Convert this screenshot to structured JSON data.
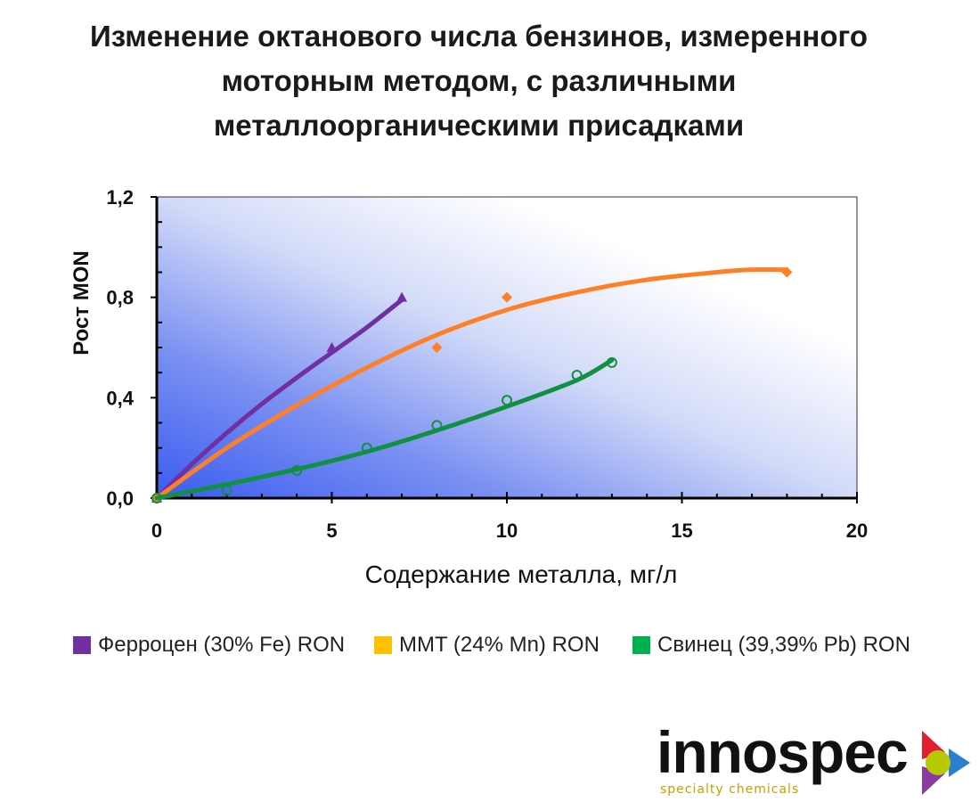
{
  "title_lines": [
    "Изменение октанового числа бензинов, измеренного",
    "моторным методом, с различными",
    "металлоорганическими присадками"
  ],
  "chart_data": {
    "type": "line",
    "title": "Изменение октанового числа бензинов, измеренного моторным методом, с различными металлоорганическими присадками",
    "xlabel": "Содержание металла, мг/л",
    "ylabel": "Рост MON",
    "xlim": [
      0,
      20
    ],
    "ylim": [
      0,
      1.2
    ],
    "xticks": [
      "0",
      "5",
      "10",
      "15",
      "20"
    ],
    "yticks": [
      "0,0",
      "0,4",
      "0,8",
      "1,2"
    ],
    "grid": false,
    "legend_position": "bottom",
    "series": [
      {
        "name": "Ферроцен (30% Fe) RON",
        "color": "#7030A0",
        "marker": "triangle",
        "points": [
          [
            0,
            0
          ],
          [
            5,
            0.6
          ],
          [
            7,
            0.8
          ]
        ],
        "curve": [
          [
            0,
            0
          ],
          [
            1,
            0.135
          ],
          [
            2,
            0.26
          ],
          [
            3,
            0.375
          ],
          [
            4,
            0.48
          ],
          [
            5,
            0.58
          ],
          [
            6,
            0.68
          ],
          [
            7,
            0.79
          ]
        ]
      },
      {
        "name": "MMT  (24% Mn) RON",
        "color": "#FF7F27",
        "marker": "diamond",
        "points": [
          [
            0,
            0
          ],
          [
            8,
            0.6
          ],
          [
            10,
            0.8
          ],
          [
            18,
            0.9
          ]
        ],
        "curve": [
          [
            0,
            0
          ],
          [
            2,
            0.2
          ],
          [
            4,
            0.37
          ],
          [
            6,
            0.52
          ],
          [
            8,
            0.65
          ],
          [
            10,
            0.75
          ],
          [
            12,
            0.82
          ],
          [
            14,
            0.87
          ],
          [
            16,
            0.9
          ],
          [
            17,
            0.91
          ],
          [
            18,
            0.91
          ]
        ]
      },
      {
        "name": "Свинец (39,39% Pb) RON",
        "color": "#109040",
        "marker": "circle",
        "points": [
          [
            0,
            0
          ],
          [
            2,
            0.03
          ],
          [
            4,
            0.11
          ],
          [
            6,
            0.2
          ],
          [
            8,
            0.29
          ],
          [
            10,
            0.39
          ],
          [
            12,
            0.49
          ],
          [
            13,
            0.54
          ]
        ],
        "curve": [
          [
            0,
            0
          ],
          [
            2,
            0.055
          ],
          [
            4,
            0.115
          ],
          [
            6,
            0.185
          ],
          [
            8,
            0.27
          ],
          [
            10,
            0.365
          ],
          [
            12,
            0.47
          ],
          [
            13,
            0.55
          ]
        ]
      }
    ]
  },
  "legend": [
    {
      "label": "Ферроцен (30% Fe) RON",
      "color": "#7030A0"
    },
    {
      "label": "MMT  (24% Mn) RON",
      "color": "#FFC000"
    },
    {
      "label": "Свинец (39,39% Pb) RON",
      "color": "#00B050"
    }
  ],
  "logo": {
    "wordmark": "innospec",
    "tagline": "specialty chemicals"
  }
}
